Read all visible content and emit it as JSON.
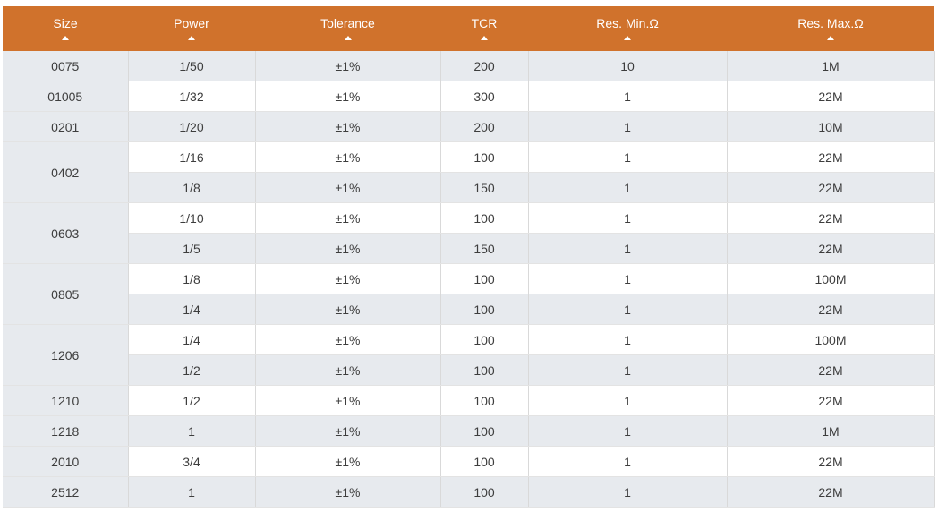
{
  "colors": {
    "header_bg": "#d0722c",
    "header_text": "#ffffff",
    "row_alt": "#e7eaee",
    "row_white": "#ffffff"
  },
  "headers": [
    {
      "label": "Size",
      "sort_icon": "sort-asc-icon"
    },
    {
      "label": "Power",
      "sort_icon": "sort-asc-icon"
    },
    {
      "label": "Tolerance",
      "sort_icon": "sort-asc-icon"
    },
    {
      "label": "TCR",
      "sort_icon": "sort-asc-icon"
    },
    {
      "label": "Res. Min.Ω",
      "sort_icon": "sort-asc-icon"
    },
    {
      "label": "Res. Max.Ω",
      "sort_icon": "sort-asc-icon"
    }
  ],
  "rows": [
    {
      "size": "0075",
      "power": "1/50",
      "tolerance": "±1%",
      "tcr": "200",
      "res_min": "10",
      "res_max": "1M"
    },
    {
      "size": "01005",
      "power": "1/32",
      "tolerance": "±1%",
      "tcr": "300",
      "res_min": "1",
      "res_max": "22M"
    },
    {
      "size": "0201",
      "power": "1/20",
      "tolerance": "±1%",
      "tcr": "200",
      "res_min": "1",
      "res_max": "10M"
    },
    {
      "size": "0402",
      "power": "1/16",
      "tolerance": "±1%",
      "tcr": "100",
      "res_min": "1",
      "res_max": "22M"
    },
    {
      "size": "",
      "power": "1/8",
      "tolerance": "±1%",
      "tcr": "150",
      "res_min": "1",
      "res_max": "22M"
    },
    {
      "size": "0603",
      "power": "1/10",
      "tolerance": "±1%",
      "tcr": "100",
      "res_min": "1",
      "res_max": "22M"
    },
    {
      "size": "",
      "power": "1/5",
      "tolerance": "±1%",
      "tcr": "150",
      "res_min": "1",
      "res_max": "22M"
    },
    {
      "size": "0805",
      "power": "1/8",
      "tolerance": "±1%",
      "tcr": "100",
      "res_min": "1",
      "res_max": "100M"
    },
    {
      "size": "",
      "power": "1/4",
      "tolerance": "±1%",
      "tcr": "100",
      "res_min": "1",
      "res_max": "22M"
    },
    {
      "size": "1206",
      "power": "1/4",
      "tolerance": "±1%",
      "tcr": "100",
      "res_min": "1",
      "res_max": "100M"
    },
    {
      "size": "",
      "power": "1/2",
      "tolerance": "±1%",
      "tcr": "100",
      "res_min": "1",
      "res_max": "22M"
    },
    {
      "size": "1210",
      "power": "1/2",
      "tolerance": "±1%",
      "tcr": "100",
      "res_min": "1",
      "res_max": "22M"
    },
    {
      "size": "1218",
      "power": "1",
      "tolerance": "±1%",
      "tcr": "100",
      "res_min": "1",
      "res_max": "1M"
    },
    {
      "size": "2010",
      "power": "3/4",
      "tolerance": "±1%",
      "tcr": "100",
      "res_min": "1",
      "res_max": "22M"
    },
    {
      "size": "2512",
      "power": "1",
      "tolerance": "±1%",
      "tcr": "100",
      "res_min": "1",
      "res_max": "22M"
    }
  ]
}
